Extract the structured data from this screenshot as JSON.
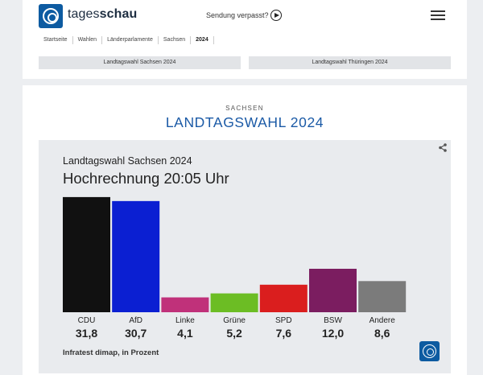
{
  "header": {
    "brand_regular": "tages",
    "brand_bold": "schau",
    "missed_label": "Sendung verpasst?",
    "menu_icon": "hamburger-menu-icon",
    "play_icon": "play-circle-icon"
  },
  "breadcrumb": [
    "Startseite",
    "Wahlen",
    "Länderparlamente",
    "Sachsen",
    "2024"
  ],
  "elections": {
    "left": "Landtagswahl Sachsen 2024",
    "right": "Landtagswahl Thüringen 2024"
  },
  "page": {
    "kicker": "SACHSEN",
    "headline": "LANDTAGSWAHL 2024"
  },
  "chart_data": {
    "type": "bar",
    "subtitle": "Landtagswahl Sachsen 2024",
    "title": "Hochrechnung 20:05 Uhr",
    "source": "Infratest dimap, in Prozent",
    "ylim": [
      0,
      32
    ],
    "categories": [
      "CDU",
      "AfD",
      "Linke",
      "Grüne",
      "SPD",
      "BSW",
      "Andere"
    ],
    "values": [
      31.8,
      30.7,
      4.1,
      5.2,
      7.6,
      12.0,
      8.6
    ],
    "value_labels": [
      "31,8",
      "30,7",
      "4,1",
      "5,2",
      "7,6",
      "12,0",
      "8,6"
    ],
    "colors": [
      "#111111",
      "#0b1fd2",
      "#c0317a",
      "#6cbd24",
      "#da1e1e",
      "#7b1d60",
      "#7b7b7b"
    ],
    "grid": false,
    "legend": "none"
  }
}
